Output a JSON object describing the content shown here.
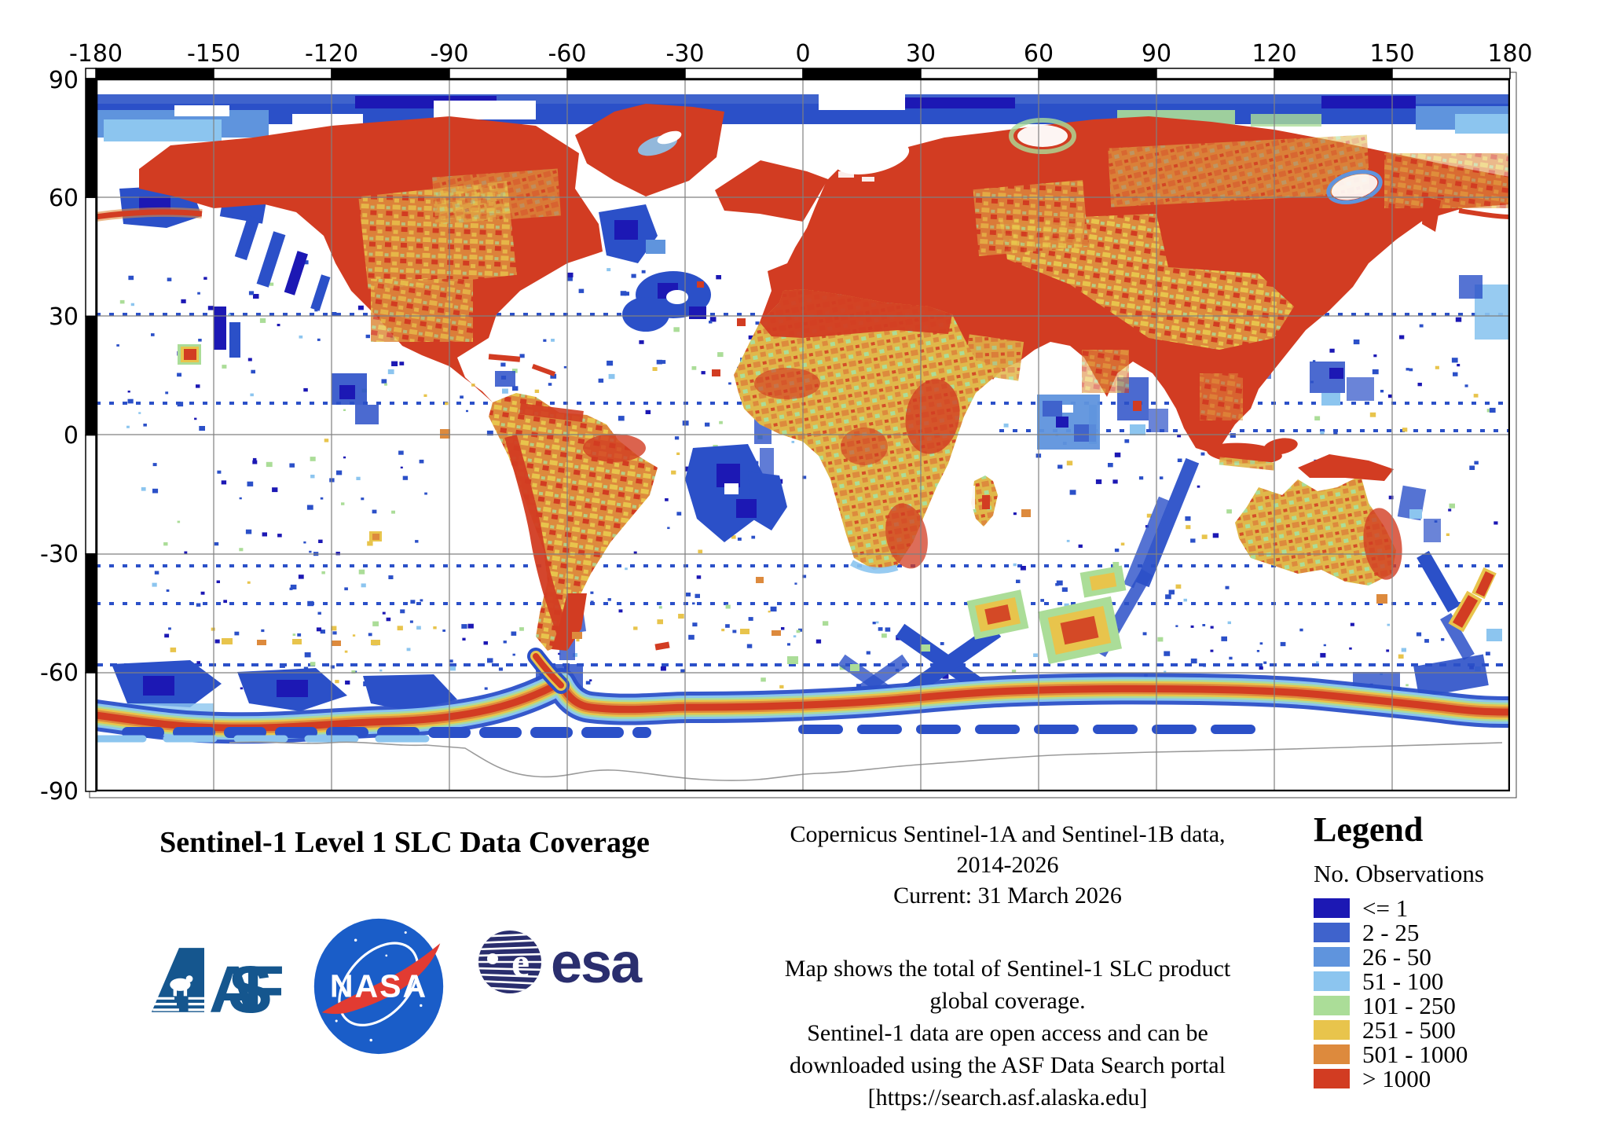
{
  "title": "Sentinel-1 Level 1 SLC Data Coverage",
  "map": {
    "axis_top": [
      "-180",
      "-150",
      "-120",
      "-90",
      "-60",
      "-30",
      "0",
      "30",
      "60",
      "90",
      "120",
      "150",
      "180"
    ],
    "axis_left": [
      "90",
      "60",
      "30",
      "0",
      "-30",
      "-60",
      "-90"
    ]
  },
  "caption": {
    "line1": "Copernicus Sentinel-1A and Sentinel-1B data,",
    "line2": "2014-2026",
    "line3": "Current: 31 March 2026"
  },
  "description": {
    "line1": "Map shows the total of Sentinel-1 SLC product",
    "line2": "global coverage.",
    "line3": "Sentinel-1 data are open access and can be",
    "line4": "downloaded using the ASF Data Search portal",
    "line5": "[https://search.asf.alaska.edu]"
  },
  "legend": {
    "title": "Legend",
    "subtitle": "No. Observations",
    "items": [
      {
        "label": "<= 1",
        "color": "#1c18b4"
      },
      {
        "label": "2 - 25",
        "color": "#3f63cc"
      },
      {
        "label": "26 - 50",
        "color": "#5f94dd"
      },
      {
        "label": "51 - 100",
        "color": "#8cc5ef"
      },
      {
        "label": "101 - 250",
        "color": "#abdd98"
      },
      {
        "label": "251 - 500",
        "color": "#e8c44c"
      },
      {
        "label": "501 - 1000",
        "color": "#dd8a3d"
      },
      {
        "label": "> 1000",
        "color": "#d23c22"
      }
    ]
  },
  "logos": {
    "asf": "ASF",
    "nasa": "NASA",
    "esa": "esa"
  },
  "colors": {
    "accent_red": "#d23c22",
    "accent_orange": "#dd8a3d",
    "accent_yellow": "#e8c44c",
    "accent_green": "#abdd98",
    "blue": "#2b50c8",
    "dark_blue": "#1c18b4",
    "asf_blue": "#15568e",
    "nasa_blue": "#1a5dc8",
    "esa_navy": "#2a2e6e"
  }
}
